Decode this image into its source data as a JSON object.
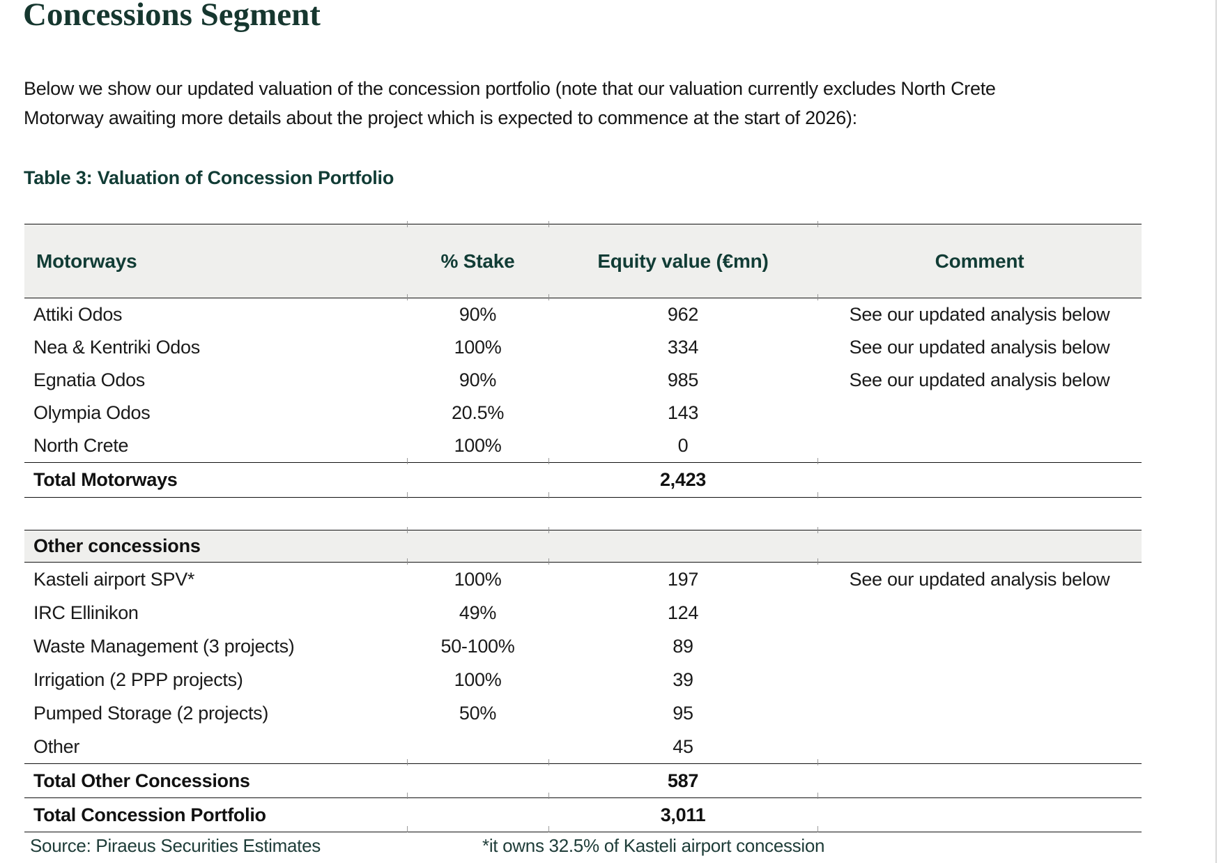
{
  "page": {
    "title": "Concessions Segment",
    "paragraph_line1": "Below we show our updated valuation of the concession portfolio (note that our valuation currently excludes North Crete",
    "paragraph_line2": "Motorway awaiting more details about the project which is expected to commence at the start of 2026):",
    "table_caption": "Table 3: Valuation of Concession Portfolio"
  },
  "table": {
    "headers": [
      "Motorways",
      "% Stake",
      "Equity value (€mn)",
      "Comment"
    ],
    "motorways_rows": [
      [
        "Attiki Odos",
        "90%",
        "962",
        "See our updated analysis below"
      ],
      [
        "Nea & Kentriki Odos",
        "100%",
        "334",
        "See our updated analysis below"
      ],
      [
        "Egnatia Odos",
        "90%",
        "985",
        "See our updated analysis below"
      ],
      [
        "Olympia Odos",
        "20.5%",
        "143",
        ""
      ],
      [
        "North Crete",
        "100%",
        "0",
        ""
      ]
    ],
    "motorways_total": {
      "label": "Total Motorways",
      "stake": "",
      "value": "2,423",
      "comment": ""
    },
    "other_header": "Other concessions",
    "other_rows": [
      [
        "Kasteli airport SPV*",
        "100%",
        "197",
        "See our updated analysis below"
      ],
      [
        "IRC Ellinikon",
        "49%",
        "124",
        ""
      ],
      [
        "Waste Management (3 projects)",
        "50-100%",
        "89",
        ""
      ],
      [
        "Irrigation (2 PPP projects)",
        "100%",
        "39",
        ""
      ],
      [
        "Pumped Storage (2 projects)",
        "50%",
        "95",
        ""
      ],
      [
        "Other",
        "",
        "45",
        ""
      ]
    ],
    "other_total": {
      "label": "Total Other Concessions",
      "stake": "",
      "value": "587",
      "comment": ""
    },
    "portfolio_total": {
      "label": "Total Concession Portfolio",
      "stake": "",
      "value": "3,011",
      "comment": ""
    }
  },
  "footer": {
    "source": "Source: Piraeus Securities Estimates",
    "footnote": "*it owns 32.5% of Kasteli airport concession"
  },
  "colors": {
    "accent_teal": "#113c35",
    "header_fill": "#efefed",
    "rule_black": "#111111",
    "page_edge_gray": "#d8d8d8"
  }
}
